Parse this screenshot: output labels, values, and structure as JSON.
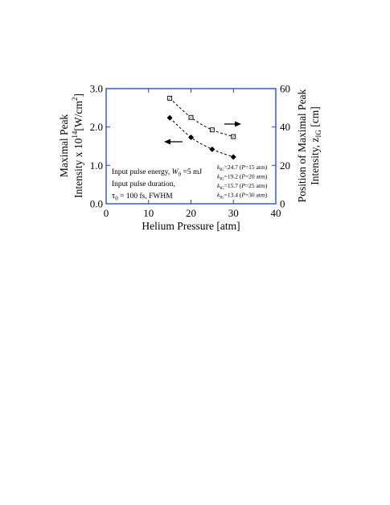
{
  "chart_data": {
    "type": "scatter",
    "title": "",
    "xlabel": "Helium Pressure [atm]",
    "ylabel": {
      "line1": "Maximal Peak",
      "line2_prefix": "Intensity x 10",
      "line2_exp": "14",
      "line2_unit_open": "[W/cm",
      "line2_unit_exp": "2",
      "line2_unit_close": "]"
    },
    "y2label": {
      "line1": "Position of Maximal Peak",
      "line2_prefix": "Intensity, z",
      "line2_sub": "IG",
      "line2_suffix": " [cm]"
    },
    "xlim": [
      0,
      40
    ],
    "ylim": [
      0,
      3
    ],
    "y2lim": [
      0,
      60
    ],
    "x_ticks": [
      "0",
      "10",
      "20",
      "30",
      "40"
    ],
    "y_ticks": [
      "0.0",
      "1.0",
      "2.0",
      "3.0"
    ],
    "y2_ticks": [
      "0",
      "20",
      "40",
      "60"
    ],
    "axis_color": "#1f3fd6",
    "grid": false,
    "series": [
      {
        "axis": "left",
        "marker": "filled-diamond",
        "x": [
          15,
          20,
          25,
          30
        ],
        "y": [
          2.24,
          1.73,
          1.42,
          1.22
        ]
      },
      {
        "axis": "right",
        "marker": "open-square",
        "x": [
          15,
          20,
          25,
          30
        ],
        "y": [
          55,
          45,
          38.5,
          35
        ]
      }
    ],
    "annotations": {
      "energy": {
        "text": "Input pulse energy, ",
        "symbol": "W",
        "sub": "0",
        "tail": " =5 mJ"
      },
      "duration_line1": "Input pulse duration,",
      "duration_line2": {
        "symbol": "τ",
        "sub": "0",
        "tail": " = 100 fs, FWHM"
      },
      "k_entries": [
        {
          "k": "k",
          "sub": "IG",
          "value": "=24.7",
          "cond_open": " (",
          "p": "P",
          "cond": "=15 atm)"
        },
        {
          "k": "k",
          "sub": "IG",
          "value": "=19.2",
          "cond_open": " (",
          "p": "P",
          "cond": "=20 atm)"
        },
        {
          "k": "k",
          "sub": "IG",
          "value": "=15.7",
          "cond_open": " (",
          "p": "P",
          "cond": "=25 atm)"
        },
        {
          "k": "k",
          "sub": "IG",
          "value": "=13.4",
          "cond_open": " (",
          "p": "P",
          "cond": "=30 atm)"
        }
      ]
    }
  }
}
